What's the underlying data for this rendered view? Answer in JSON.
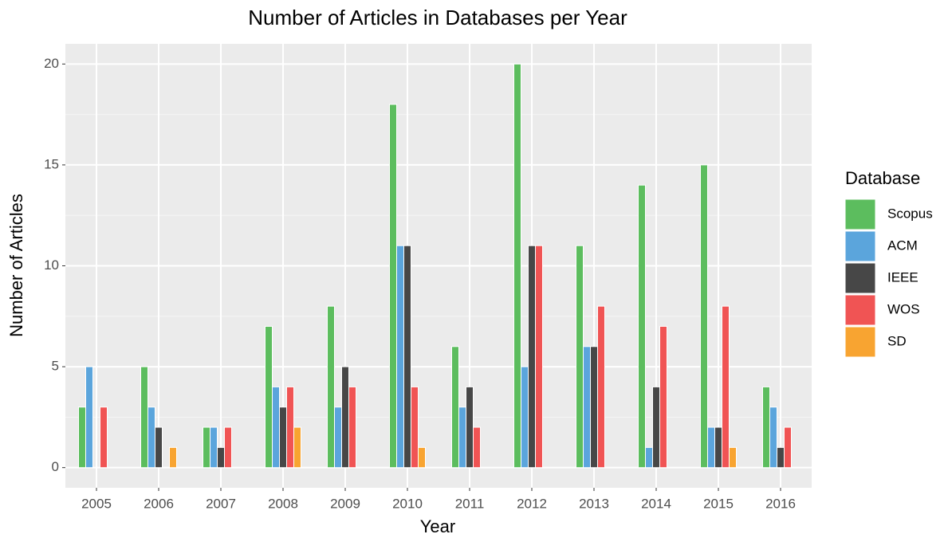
{
  "chart_data": {
    "type": "bar",
    "title": "Number of Articles in Databases per Year",
    "x_label": "Year",
    "y_label": "Number of Articles",
    "legend_title": "Database",
    "categories": [
      "2005",
      "2006",
      "2007",
      "2008",
      "2009",
      "2010",
      "2011",
      "2012",
      "2013",
      "2014",
      "2015",
      "2016"
    ],
    "series": [
      {
        "name": "Scopus",
        "color": "#5cbd5e",
        "values": [
          3,
          5,
          2,
          7,
          8,
          18,
          6,
          20,
          11,
          14,
          15,
          4
        ]
      },
      {
        "name": "ACM",
        "color": "#5ba5dc",
        "values": [
          5,
          3,
          2,
          4,
          3,
          11,
          3,
          5,
          6,
          1,
          2,
          3
        ]
      },
      {
        "name": "IEEE",
        "color": "#474747",
        "values": [
          0,
          2,
          1,
          3,
          5,
          11,
          4,
          11,
          6,
          4,
          2,
          1
        ]
      },
      {
        "name": "WOS",
        "color": "#f05454",
        "values": [
          3,
          0,
          2,
          4,
          4,
          4,
          2,
          11,
          8,
          7,
          8,
          2
        ]
      },
      {
        "name": "SD",
        "color": "#f8a431",
        "values": [
          0,
          1,
          0,
          2,
          0,
          1,
          0,
          0,
          0,
          0,
          1,
          0
        ]
      }
    ],
    "ylim": [
      -1,
      21
    ],
    "yticks": [
      0,
      5,
      10,
      15,
      20
    ],
    "grid": true,
    "legend": "right"
  }
}
